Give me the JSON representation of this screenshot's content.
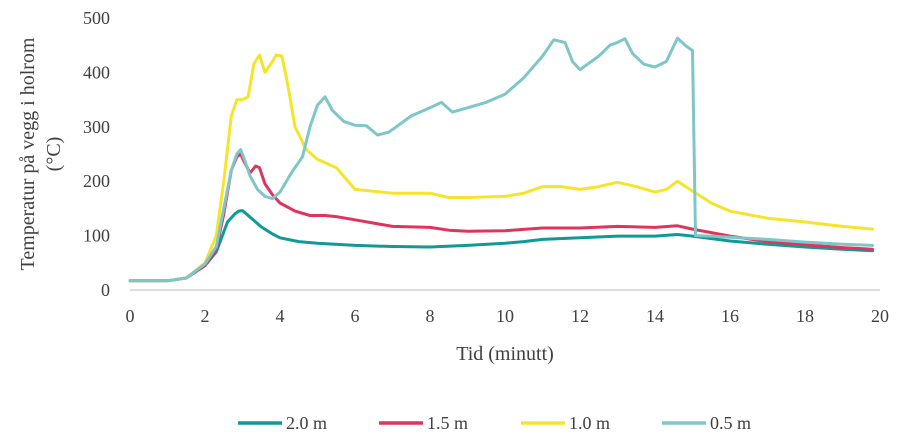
{
  "chart_data": {
    "type": "line",
    "xlabel": "Tid (minutt)",
    "ylabel_lines": [
      "Temperatur på vegg i holrom",
      "(°C)"
    ],
    "xlim": [
      0,
      20
    ],
    "ylim": [
      0,
      500
    ],
    "x_ticks": [
      0,
      2,
      4,
      6,
      8,
      10,
      12,
      14,
      16,
      18,
      20
    ],
    "y_ticks": [
      0,
      100,
      200,
      300,
      400,
      500
    ],
    "grid": false,
    "legend_position": "bottom",
    "series": [
      {
        "name": "2.0 m",
        "color": "#0e9a96",
        "points": [
          [
            0,
            17
          ],
          [
            1,
            17
          ],
          [
            1.5,
            22
          ],
          [
            2,
            45
          ],
          [
            2.3,
            70
          ],
          [
            2.6,
            125
          ],
          [
            2.8,
            140
          ],
          [
            2.9,
            145
          ],
          [
            3.0,
            146
          ],
          [
            3.1,
            140
          ],
          [
            3.3,
            128
          ],
          [
            3.5,
            116
          ],
          [
            3.8,
            103
          ],
          [
            4,
            96
          ],
          [
            4.5,
            89
          ],
          [
            5,
            86
          ],
          [
            6,
            82
          ],
          [
            7,
            80
          ],
          [
            8,
            79
          ],
          [
            9,
            82
          ],
          [
            10,
            86
          ],
          [
            10.5,
            89
          ],
          [
            11,
            93
          ],
          [
            12,
            96
          ],
          [
            13,
            99
          ],
          [
            14,
            99
          ],
          [
            14.6,
            102
          ],
          [
            15,
            99
          ],
          [
            16,
            90
          ],
          [
            17,
            84
          ],
          [
            18,
            79
          ],
          [
            19,
            75
          ],
          [
            19.8,
            72
          ]
        ]
      },
      {
        "name": "1.5 m",
        "color": "#e0345c",
        "points": [
          [
            0,
            17
          ],
          [
            1,
            17
          ],
          [
            1.5,
            22
          ],
          [
            2,
            45
          ],
          [
            2.3,
            75
          ],
          [
            2.5,
            140
          ],
          [
            2.7,
            220
          ],
          [
            2.85,
            245
          ],
          [
            2.95,
            250
          ],
          [
            3.05,
            235
          ],
          [
            3.2,
            215
          ],
          [
            3.35,
            228
          ],
          [
            3.45,
            225
          ],
          [
            3.6,
            195
          ],
          [
            3.8,
            175
          ],
          [
            4,
            160
          ],
          [
            4.4,
            145
          ],
          [
            4.8,
            137
          ],
          [
            5.2,
            137
          ],
          [
            5.5,
            135
          ],
          [
            6,
            129
          ],
          [
            6.5,
            123
          ],
          [
            7,
            117
          ],
          [
            8,
            115
          ],
          [
            8.5,
            110
          ],
          [
            9,
            108
          ],
          [
            10,
            109
          ],
          [
            11,
            114
          ],
          [
            12,
            114
          ],
          [
            13,
            117
          ],
          [
            14,
            115
          ],
          [
            14.6,
            118
          ],
          [
            15,
            112
          ],
          [
            16,
            99
          ],
          [
            17,
            89
          ],
          [
            18,
            83
          ],
          [
            19,
            78
          ],
          [
            19.8,
            75
          ]
        ]
      },
      {
        "name": "1.0 m",
        "color": "#f5e52a",
        "points": [
          [
            0,
            17
          ],
          [
            1,
            17
          ],
          [
            1.5,
            22
          ],
          [
            2,
            50
          ],
          [
            2.3,
            100
          ],
          [
            2.5,
            200
          ],
          [
            2.7,
            320
          ],
          [
            2.85,
            350
          ],
          [
            3.0,
            350
          ],
          [
            3.15,
            355
          ],
          [
            3.3,
            415
          ],
          [
            3.45,
            432
          ],
          [
            3.6,
            400
          ],
          [
            3.8,
            420
          ],
          [
            3.9,
            432
          ],
          [
            4.05,
            430
          ],
          [
            4.2,
            380
          ],
          [
            4.4,
            300
          ],
          [
            4.7,
            258
          ],
          [
            5,
            240
          ],
          [
            5.5,
            225
          ],
          [
            6,
            185
          ],
          [
            7,
            178
          ],
          [
            8,
            178
          ],
          [
            8.5,
            170
          ],
          [
            9,
            170
          ],
          [
            10,
            172
          ],
          [
            10.5,
            178
          ],
          [
            11,
            190
          ],
          [
            11.5,
            190
          ],
          [
            12,
            185
          ],
          [
            12.5,
            190
          ],
          [
            13,
            198
          ],
          [
            13.5,
            190
          ],
          [
            14,
            180
          ],
          [
            14.3,
            185
          ],
          [
            14.6,
            200
          ],
          [
            15,
            182
          ],
          [
            15.5,
            160
          ],
          [
            16,
            145
          ],
          [
            17,
            132
          ],
          [
            18,
            125
          ],
          [
            19,
            117
          ],
          [
            19.8,
            112
          ]
        ]
      },
      {
        "name": "0.5 m",
        "color": "#7fc6c8",
        "points": [
          [
            0,
            17
          ],
          [
            1,
            17
          ],
          [
            1.5,
            22
          ],
          [
            2,
            48
          ],
          [
            2.3,
            80
          ],
          [
            2.5,
            150
          ],
          [
            2.7,
            220
          ],
          [
            2.85,
            250
          ],
          [
            2.95,
            258
          ],
          [
            3.05,
            240
          ],
          [
            3.2,
            210
          ],
          [
            3.4,
            185
          ],
          [
            3.6,
            172
          ],
          [
            3.8,
            168
          ],
          [
            4,
            180
          ],
          [
            4.3,
            215
          ],
          [
            4.6,
            245
          ],
          [
            4.8,
            300
          ],
          [
            5,
            340
          ],
          [
            5.2,
            355
          ],
          [
            5.4,
            330
          ],
          [
            5.7,
            310
          ],
          [
            6,
            303
          ],
          [
            6.3,
            302
          ],
          [
            6.6,
            285
          ],
          [
            6.9,
            290
          ],
          [
            7.2,
            305
          ],
          [
            7.5,
            320
          ],
          [
            8,
            335
          ],
          [
            8.3,
            345
          ],
          [
            8.6,
            327
          ],
          [
            9,
            335
          ],
          [
            9.5,
            345
          ],
          [
            10,
            360
          ],
          [
            10.5,
            390
          ],
          [
            11,
            430
          ],
          [
            11.3,
            460
          ],
          [
            11.6,
            455
          ],
          [
            11.8,
            420
          ],
          [
            12,
            405
          ],
          [
            12.5,
            430
          ],
          [
            12.8,
            450
          ],
          [
            13,
            455
          ],
          [
            13.2,
            462
          ],
          [
            13.4,
            435
          ],
          [
            13.7,
            415
          ],
          [
            14,
            410
          ],
          [
            14.3,
            420
          ],
          [
            14.6,
            463
          ],
          [
            14.8,
            450
          ],
          [
            15.0,
            440
          ],
          [
            15.08,
            100
          ],
          [
            15.5,
            99
          ],
          [
            16,
            97
          ],
          [
            17,
            93
          ],
          [
            18,
            88
          ],
          [
            19,
            84
          ],
          [
            19.8,
            82
          ]
        ]
      }
    ]
  }
}
